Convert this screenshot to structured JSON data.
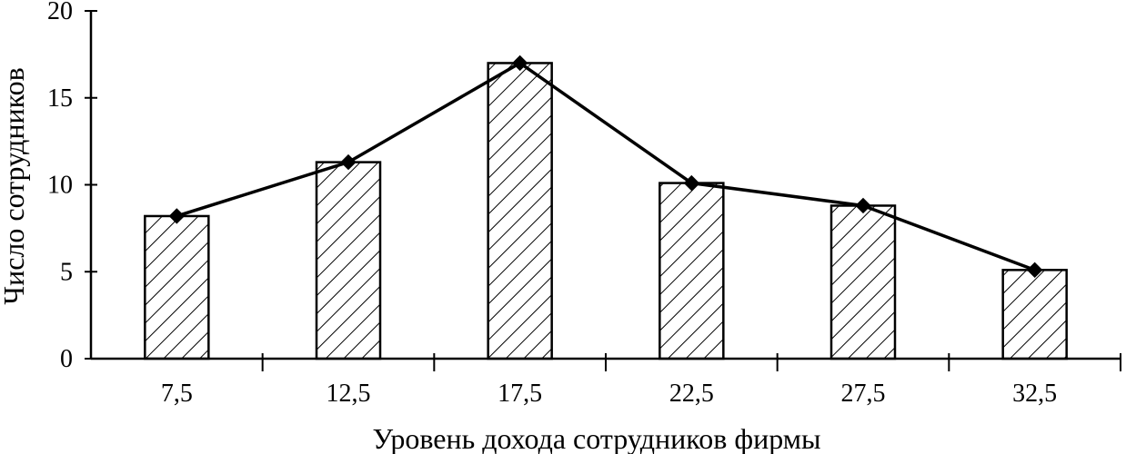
{
  "chart_data": {
    "type": "bar",
    "title": "",
    "xlabel": "Уровень дохода сотрудников фирмы",
    "ylabel": "Число сотрудников",
    "categories": [
      "7,5",
      "12,5",
      "17,5",
      "22,5",
      "27,5",
      "32,5"
    ],
    "values": [
      8.2,
      11.3,
      17.0,
      10.1,
      8.8,
      5.1
    ],
    "line_values": [
      8.2,
      11.3,
      17.0,
      10.1,
      8.8,
      5.1
    ],
    "overlay": "line with diamond markers through bar tops (frequency polygon)",
    "ylim": [
      0,
      20
    ],
    "yticks": [
      "0",
      "5",
      "10",
      "15",
      "20"
    ],
    "grid": false,
    "legend": "none",
    "bar_fill": "diagonal hatch",
    "colors": {
      "bar_stroke": "#000000",
      "hatch": "#000000",
      "line": "#000000",
      "marker": "#000000",
      "background": "#ffffff"
    }
  }
}
